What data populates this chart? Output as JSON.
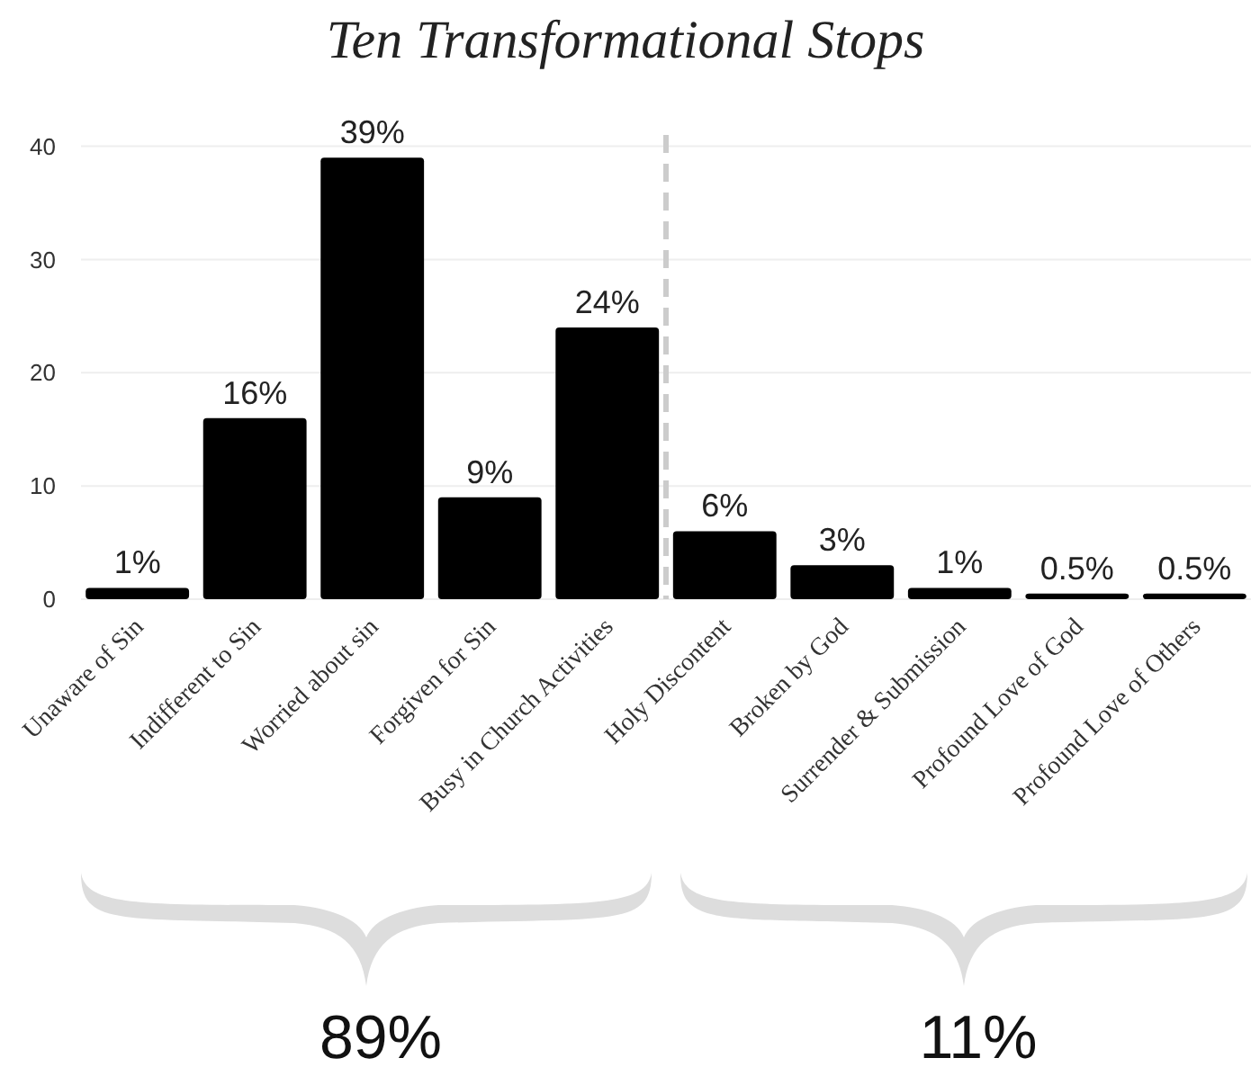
{
  "chart_data": {
    "type": "bar",
    "title": "Ten Transformational Stops",
    "categories": [
      "Unaware of Sin",
      "Indifferent to Sin",
      "Worried about sin",
      "Forgiven for Sin",
      "Busy in Church Activities",
      "Holy Discontent",
      "Broken by God",
      "Surrender & Submission",
      "Profound Love of God",
      "Profound Love of Others"
    ],
    "values": [
      1,
      16,
      39,
      9,
      24,
      6,
      3,
      1,
      0.5,
      0.5
    ],
    "value_labels": [
      "1%",
      "16%",
      "39%",
      "9%",
      "24%",
      "6%",
      "3%",
      "1%",
      "0.5%",
      "0.5%"
    ],
    "color": "#000000",
    "ylim": [
      0,
      41
    ],
    "yticks": [
      0,
      10,
      20,
      30,
      40
    ],
    "grid": "y",
    "annotations": [
      "89%",
      "11%"
    ]
  }
}
